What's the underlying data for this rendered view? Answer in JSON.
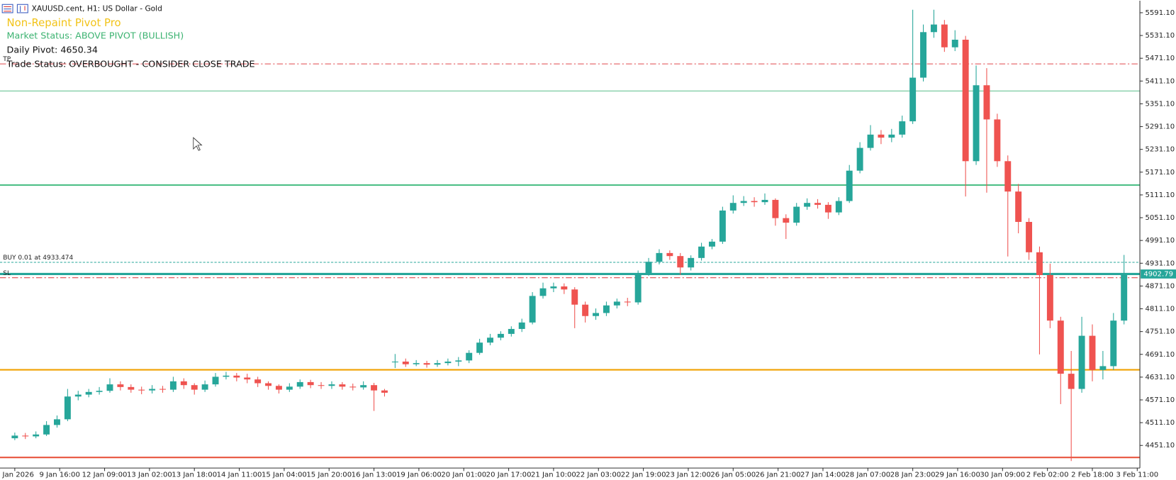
{
  "chart_data": {
    "type": "candlestick",
    "symbol_label": "XAUUSD.cent, H1:  US Dollar - Gold",
    "annotations": [
      {
        "text": "Non-Repaint Pivot Pro",
        "color": "#f2c318"
      },
      {
        "text": "Market Status: ABOVE PIVOT (BULLISH)",
        "color": "#3cb371"
      },
      {
        "text": "Daily Pivot: 4650.34",
        "color": "#111111"
      },
      {
        "text": "Trade Status: OVERBOUGHT - CONSIDER CLOSE TRADE",
        "color": "#111111"
      }
    ],
    "up_color": "#26a69a",
    "down_color": "#ef5350",
    "xlim": [
      -1.4,
      106.5
    ],
    "ylim": [
      4391.6,
      5622.8
    ],
    "xticks": [
      {
        "value": 0,
        "label": "8 Jan 2026"
      },
      {
        "value": 4.25,
        "label": "9 Jan 16:00"
      },
      {
        "value": 8.5,
        "label": "12 Jan 09:00"
      },
      {
        "value": 12.75,
        "label": "13 Jan 02:00"
      },
      {
        "value": 17,
        "label": "13 Jan 18:00"
      },
      {
        "value": 21.25,
        "label": "14 Jan 11:00"
      },
      {
        "value": 25.5,
        "label": "15 Jan 04:00"
      },
      {
        "value": 29.75,
        "label": "15 Jan 20:00"
      },
      {
        "value": 34,
        "label": "16 Jan 13:00"
      },
      {
        "value": 38.25,
        "label": "19 Jan 06:00"
      },
      {
        "value": 42.5,
        "label": "20 Jan 01:00"
      },
      {
        "value": 46.75,
        "label": "20 Jan 17:00"
      },
      {
        "value": 51,
        "label": "21 Jan 10:00"
      },
      {
        "value": 55.25,
        "label": "22 Jan 03:00"
      },
      {
        "value": 59.5,
        "label": "22 Jan 19:00"
      },
      {
        "value": 63.75,
        "label": "23 Jan 12:00"
      },
      {
        "value": 68,
        "label": "26 Jan 05:00"
      },
      {
        "value": 72.25,
        "label": "26 Jan 21:00"
      },
      {
        "value": 76.5,
        "label": "27 Jan 14:00"
      },
      {
        "value": 80.75,
        "label": "28 Jan 07:00"
      },
      {
        "value": 85,
        "label": "28 Jan 23:00"
      },
      {
        "value": 89.25,
        "label": "29 Jan 16:00"
      },
      {
        "value": 93.5,
        "label": "30 Jan 09:00"
      },
      {
        "value": 97.75,
        "label": "2 Feb 02:00"
      },
      {
        "value": 102,
        "label": "2 Feb 18:00"
      },
      {
        "value": 106.25,
        "label": "3 Feb 11:00"
      }
    ],
    "yticks": [
      {
        "value": 5591.1,
        "label": "5591.10"
      },
      {
        "value": 5531.1,
        "label": "5531.10"
      },
      {
        "value": 5471.1,
        "label": "5471.10"
      },
      {
        "value": 5411.1,
        "label": "5411.10"
      },
      {
        "value": 5351.1,
        "label": "5351.10"
      },
      {
        "value": 5291.1,
        "label": "5291.10"
      },
      {
        "value": 5231.1,
        "label": "5231.10"
      },
      {
        "value": 5171.1,
        "label": "5171.10"
      },
      {
        "value": 5111.1,
        "label": "5111.10"
      },
      {
        "value": 5051.1,
        "label": "5051.10"
      },
      {
        "value": 4991.1,
        "label": "4991.10"
      },
      {
        "value": 4931.1,
        "label": "4931.10"
      },
      {
        "value": 4871.1,
        "label": "4871.10"
      },
      {
        "value": 4811.1,
        "label": "4811.10"
      },
      {
        "value": 4751.1,
        "label": "4751.10"
      },
      {
        "value": 4691.1,
        "label": "4691.10"
      },
      {
        "value": 4631.1,
        "label": "4631.10"
      },
      {
        "value": 4571.1,
        "label": "4571.10"
      },
      {
        "value": 4511.1,
        "label": "4511.10"
      },
      {
        "value": 4451.1,
        "label": "4451.10"
      }
    ],
    "levels": [
      {
        "value": 5456.3,
        "color": "#e0474c",
        "style": "dashdot",
        "width": 1,
        "label": "TP"
      },
      {
        "value": 5384.9,
        "color": "#6cc497",
        "style": "solid",
        "width": 1
      },
      {
        "value": 5137.1,
        "color": "#2fb573",
        "style": "solid",
        "width": 1.6
      },
      {
        "value": 4933.474,
        "color": "#26a69a",
        "style": "dashed",
        "width": 1,
        "label": "BUY 0.01 at 4933.474"
      },
      {
        "value": 4902.79,
        "color": "#26a69a",
        "style": "solid",
        "width": 3,
        "axis_label": true
      },
      {
        "value": 4893,
        "color": "#e0474c",
        "style": "dashdot",
        "width": 1,
        "label": "SL"
      },
      {
        "value": 4650.34,
        "color": "#f0a000",
        "style": "solid",
        "width": 2
      },
      {
        "value": 4419.4,
        "color": "#e8553e",
        "style": "solid",
        "width": 2
      }
    ],
    "open": [
      4470,
      4477,
      4475,
      4480,
      4505,
      4520,
      4580,
      4585,
      4592,
      4595,
      4612,
      4605,
      4598,
      4596,
      4600,
      4598,
      4620,
      4610,
      4598,
      4612,
      4632,
      4635,
      4630,
      4625,
      4615,
      4608,
      4598,
      4606,
      4618,
      4610,
      4608,
      4612,
      4606,
      4604,
      4610,
      4596,
      4670,
      4672,
      4665,
      4668,
      4664,
      4668,
      4672,
      4675,
      4695,
      4722,
      4735,
      4745,
      4758,
      4775,
      4845,
      4865,
      4870,
      4862,
      4822,
      4792,
      4800,
      4820,
      4830,
      4828,
      4905,
      4935,
      4958,
      4950,
      4920,
      4945,
      4975,
      4988,
      5070,
      5090,
      5095,
      5092,
      5098,
      5050,
      5038,
      5080,
      5090,
      5085,
      5065,
      5095,
      5175,
      5235,
      5270,
      5262,
      5270,
      5305,
      5420,
      5540,
      5560,
      5500,
      5520,
      5200,
      5400,
      5310,
      5200,
      5120,
      5040,
      4960,
      4900,
      4780,
      4640,
      4600,
      4740,
      4650,
      4660,
      4780
    ],
    "high": [
      4485,
      4484,
      4488,
      4515,
      4530,
      4600,
      4595,
      4600,
      4605,
      4628,
      4620,
      4612,
      4606,
      4610,
      4608,
      4632,
      4628,
      4615,
      4622,
      4642,
      4645,
      4642,
      4640,
      4632,
      4620,
      4612,
      4615,
      4625,
      4624,
      4618,
      4620,
      4618,
      4614,
      4620,
      4616,
      4600,
      4692,
      4680,
      4676,
      4674,
      4676,
      4680,
      4684,
      4702,
      4732,
      4745,
      4752,
      4765,
      4785,
      4855,
      4880,
      4880,
      4878,
      4868,
      4830,
      4812,
      4830,
      4838,
      4840,
      4912,
      4945,
      4968,
      4965,
      4958,
      4952,
      4985,
      4995,
      5080,
      5110,
      5108,
      5105,
      5115,
      5102,
      5060,
      5090,
      5102,
      5100,
      5092,
      5105,
      5190,
      5250,
      5295,
      5282,
      5285,
      5320,
      5599,
      5560,
      5599,
      5572,
      5545,
      5530,
      5452,
      5445,
      5325,
      5215,
      5140,
      5050,
      4975,
      4930,
      4790,
      4700,
      4790,
      4770,
      4700,
      4800,
      4953
    ],
    "low": [
      4465,
      4468,
      4470,
      4476,
      4498,
      4515,
      4570,
      4578,
      4585,
      4590,
      4596,
      4590,
      4586,
      4588,
      4590,
      4592,
      4600,
      4585,
      4592,
      4606,
      4625,
      4620,
      4615,
      4605,
      4598,
      4588,
      4592,
      4600,
      4602,
      4600,
      4600,
      4598,
      4596,
      4598,
      4542,
      4580,
      4655,
      4658,
      4660,
      4656,
      4658,
      4662,
      4660,
      4668,
      4690,
      4715,
      4728,
      4738,
      4750,
      4770,
      4838,
      4855,
      4850,
      4760,
      4775,
      4782,
      4792,
      4812,
      4818,
      4822,
      4898,
      4928,
      4940,
      4900,
      4912,
      4938,
      4968,
      4982,
      5062,
      5082,
      5080,
      5085,
      5030,
      4995,
      5030,
      5072,
      5075,
      5048,
      5058,
      5090,
      5168,
      5228,
      5245,
      5250,
      5262,
      5298,
      5410,
      5525,
      5488,
      5490,
      5107,
      5190,
      5117,
      5185,
      4949,
      5010,
      4940,
      4691,
      4760,
      4560,
      4410,
      4590,
      4620,
      4625,
      4650,
      4770
    ],
    "close": [
      4477,
      4475,
      4480,
      4505,
      4520,
      4580,
      4585,
      4592,
      4595,
      4612,
      4605,
      4598,
      4596,
      4600,
      4598,
      4620,
      4610,
      4598,
      4612,
      4632,
      4635,
      4630,
      4625,
      4615,
      4608,
      4598,
      4606,
      4618,
      4610,
      4608,
      4612,
      4606,
      4604,
      4610,
      4596,
      4590,
      4672,
      4665,
      4668,
      4664,
      4668,
      4672,
      4675,
      4695,
      4722,
      4735,
      4745,
      4758,
      4775,
      4845,
      4865,
      4870,
      4862,
      4822,
      4792,
      4800,
      4820,
      4830,
      4828,
      4905,
      4935,
      4958,
      4950,
      4920,
      4945,
      4975,
      4988,
      5070,
      5090,
      5095,
      5092,
      5098,
      5050,
      5038,
      5080,
      5090,
      5085,
      5065,
      5095,
      5175,
      5235,
      5270,
      5262,
      5270,
      5305,
      5420,
      5540,
      5560,
      5500,
      5520,
      5200,
      5400,
      5310,
      5200,
      5120,
      5040,
      4960,
      4900,
      4780,
      4640,
      4600,
      4740,
      4650,
      4660,
      4780,
      4902.79
    ]
  }
}
